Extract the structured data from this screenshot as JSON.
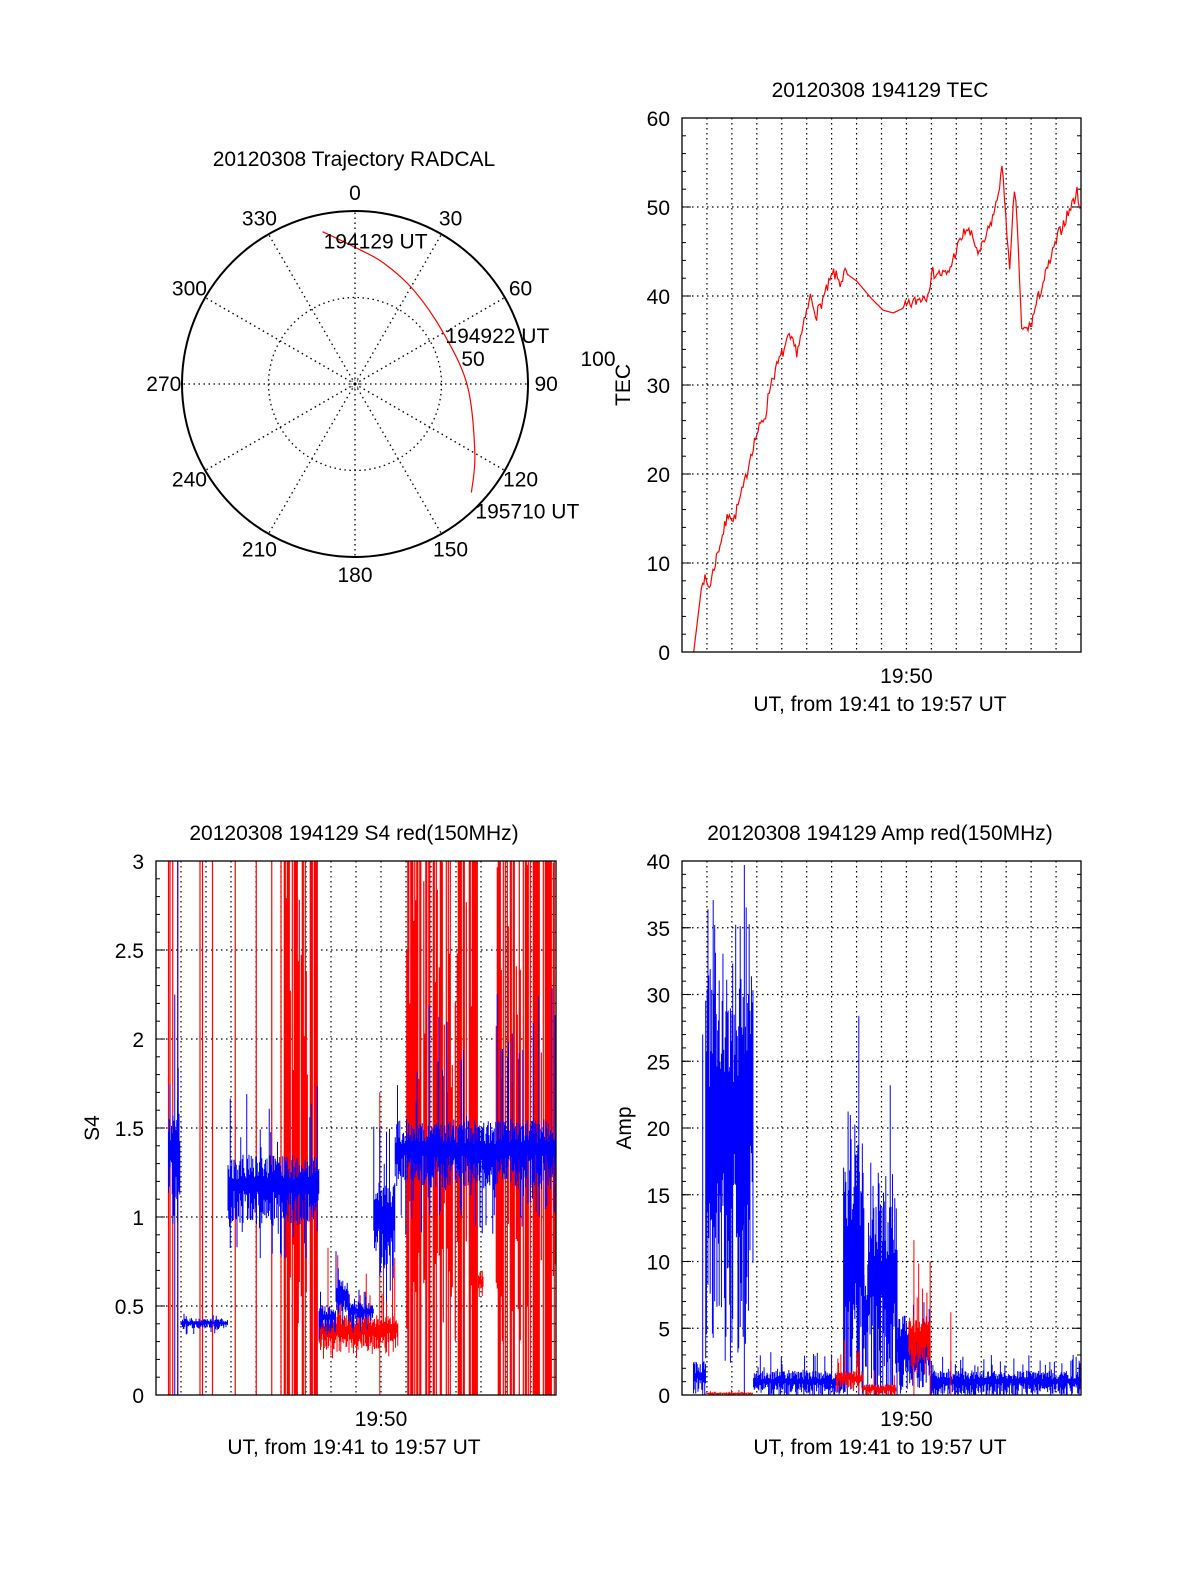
{
  "chart_data": [
    {
      "type": "polar",
      "title": "20120308 Trajectory RADCAL",
      "rlim": [
        0,
        100
      ],
      "angle_labels": [
        "0",
        "30",
        "60",
        "90",
        "120",
        "150",
        "180",
        "210",
        "240",
        "270",
        "300",
        "330"
      ],
      "radial_labels": [
        "50",
        "100"
      ],
      "trajectory": {
        "color": "#ff0000",
        "points_az_r": [
          [
            348,
            90
          ],
          [
            0,
            79
          ],
          [
            13,
            72
          ],
          [
            32,
            64
          ],
          [
            60,
            59
          ],
          [
            91,
            65
          ],
          [
            120,
            80
          ],
          [
            133,
            92
          ]
        ]
      },
      "annotations": [
        {
          "text": "194129 UT",
          "az": 348,
          "r": 90
        },
        {
          "text": "194922 UT",
          "az": 60,
          "r": 59
        },
        {
          "text": "195710 UT",
          "az": 133,
          "r": 92
        }
      ]
    },
    {
      "type": "line",
      "title": "20120308 194129 TEC",
      "xlabel": "UT, from 19:41 to 19:57 UT",
      "ylabel": "TEC",
      "x_units": "minutes after 19:00",
      "xlim": [
        41,
        57
      ],
      "xtick_labels": [
        {
          "value": 50,
          "label": "19:50"
        }
      ],
      "ylim": [
        0,
        60
      ],
      "yticks": [
        "0",
        "10",
        "20",
        "30",
        "40",
        "50",
        "60"
      ],
      "grid": true,
      "series": [
        {
          "name": "TEC",
          "color": "#ff0000",
          "x": [
            41.47,
            41.83,
            42.1,
            42.43,
            42.9,
            43.05,
            43.5,
            43.76,
            44.0,
            44.35,
            44.55,
            44.95,
            45.3,
            45.6,
            45.8,
            46.15,
            46.4,
            47.08,
            47.34,
            47.54,
            48.0,
            48.6,
            49.07,
            49.47,
            50.0,
            50.53,
            50.8,
            51.06,
            51.66,
            52.0,
            52.4,
            52.66,
            52.92,
            53.32,
            53.59,
            53.83,
            53.98,
            54.14,
            54.33,
            54.45,
            54.62,
            54.98,
            55.25,
            55.71,
            56.11,
            56.44,
            56.84,
            57.0
          ],
          "y": [
            0,
            8.4,
            7.3,
            11.2,
            15.9,
            14.6,
            18.8,
            22.3,
            24.5,
            26.7,
            30.2,
            33.1,
            35.3,
            33.8,
            35.7,
            39.9,
            37.9,
            42.6,
            41.5,
            42.6,
            41.7,
            39.7,
            38.4,
            38.1,
            38.8,
            39.7,
            40.1,
            42.6,
            42.4,
            45.2,
            47.6,
            46.5,
            44.6,
            47.6,
            50.1,
            54.3,
            49.6,
            42.4,
            52.1,
            47.9,
            36.0,
            36.6,
            39.5,
            43.5,
            47.0,
            49.0,
            51.6,
            49.9
          ]
        }
      ]
    },
    {
      "type": "line",
      "title": "20120308 194129 S4 red(150MHz)",
      "xlabel": "UT, from 19:41 to 19:57 UT",
      "ylabel": "S4",
      "x_units": "minutes after 19:00",
      "xlim": [
        41,
        57
      ],
      "xtick_labels": [
        {
          "value": 50,
          "label": "19:50"
        }
      ],
      "ylim": [
        0,
        3
      ],
      "yticks": [
        "0",
        "0.5",
        "1",
        "1.5",
        "2",
        "2.5",
        "3"
      ],
      "grid": true,
      "series": [
        {
          "name": "red (150MHz)",
          "color": "#ff0000",
          "full_range_spikes": [
            41.5,
            41.56,
            41.67,
            41.87,
            42.76,
            42.86,
            43.26,
            44.17,
            45.01,
            45.63,
            46.0
          ],
          "dense_spike_ranges": [
            [
              46.13,
              47.46
            ],
            [
              51.03,
              51.96
            ],
            [
              52.09,
              53.88
            ],
            [
              54.61,
              57.0
            ]
          ],
          "envelope_segments": [
            {
              "from": 47.52,
              "to": 50.7,
              "lo": 0.25,
              "hi": 0.45,
              "min": 0.2,
              "max": 0.85
            },
            {
              "from": 53.9,
              "to": 54.1,
              "lo": 0.55,
              "hi": 0.7,
              "min": 0.5,
              "max": 0.8
            }
          ],
          "spikes": [
            [
              49.95,
              1.7
            ]
          ]
        },
        {
          "name": "blue",
          "color": "#0000ff",
          "envelope_segments": [
            {
              "from": 41.5,
              "to": 41.96,
              "lo": 1.1,
              "hi": 1.6,
              "min": 0.9,
              "max": 1.85
            },
            {
              "from": 42.0,
              "to": 43.88,
              "lo": 0.37,
              "hi": 0.43,
              "min": 0.34,
              "max": 0.46
            },
            {
              "from": 43.88,
              "to": 47.52,
              "lo": 0.95,
              "hi": 1.35,
              "min": 0.75,
              "max": 1.75
            },
            {
              "from": 47.52,
              "to": 48.2,
              "lo": 0.35,
              "hi": 0.5,
              "min": 0.3,
              "max": 0.62
            },
            {
              "from": 48.2,
              "to": 48.7,
              "lo": 0.45,
              "hi": 0.65,
              "min": 0.35,
              "max": 0.84
            },
            {
              "from": 48.7,
              "to": 49.71,
              "lo": 0.4,
              "hi": 0.52,
              "min": 0.35,
              "max": 0.6
            },
            {
              "from": 49.71,
              "to": 50.57,
              "lo": 0.7,
              "hi": 1.2,
              "min": 0.5,
              "max": 1.55
            },
            {
              "from": 50.57,
              "to": 57.0,
              "lo": 1.15,
              "hi": 1.55,
              "min": 0.9,
              "max": 2.3
            }
          ],
          "spikes": [
            [
              41.87,
              3.0
            ],
            [
              41.75,
              2.25
            ]
          ]
        }
      ]
    },
    {
      "type": "line",
      "title": "20120308 194129 Amp red(150MHz)",
      "xlabel": "UT, from 19:41 to 19:57 UT",
      "ylabel": "Amp",
      "x_units": "minutes after 19:00",
      "xlim": [
        41,
        57
      ],
      "xtick_labels": [
        {
          "value": 50,
          "label": "19:50"
        }
      ],
      "ylim": [
        0,
        40
      ],
      "yticks": [
        "0",
        "5",
        "10",
        "15",
        "20",
        "25",
        "30",
        "35",
        "40"
      ],
      "grid": true,
      "series": [
        {
          "name": "blue",
          "color": "#0000ff",
          "envelope_segments": [
            {
              "from": 41.46,
              "to": 41.95,
              "lo": 0,
              "hi": 2.5,
              "min": 0,
              "max": 3.6
            },
            {
              "from": 41.95,
              "to": 43.87,
              "lo": 5,
              "hi": 32.5,
              "min": 2.3,
              "max": 38
            },
            {
              "from": 43.87,
              "to": 47.48,
              "lo": 0,
              "hi": 1.8,
              "min": 0,
              "max": 3.3
            },
            {
              "from": 47.48,
              "to": 48.3,
              "lo": 0.5,
              "hi": 19,
              "min": 0,
              "max": 22
            },
            {
              "from": 48.3,
              "to": 48.45,
              "lo": 0,
              "hi": 10,
              "min": 0,
              "max": 13
            },
            {
              "from": 48.45,
              "to": 49.64,
              "lo": 0,
              "hi": 15,
              "min": 0,
              "max": 17.5
            },
            {
              "from": 49.64,
              "to": 50.04,
              "lo": 0.5,
              "hi": 6,
              "min": 0,
              "max": 10.9
            },
            {
              "from": 50.04,
              "to": 50.97,
              "lo": 1,
              "hi": 5,
              "min": 0.5,
              "max": 7
            },
            {
              "from": 50.97,
              "to": 57.0,
              "lo": 0,
              "hi": 1.8,
              "min": 0,
              "max": 3
            }
          ],
          "spikes": [
            [
              41.83,
              27
            ],
            [
              43.5,
              39.7
            ],
            [
              48.09,
              28.4
            ],
            [
              49.35,
              23.2
            ]
          ]
        },
        {
          "name": "red (150MHz)",
          "color": "#ff0000",
          "envelope_segments": [
            {
              "from": 41.96,
              "to": 43.85,
              "lo": 0,
              "hi": 0.2,
              "min": 0,
              "max": 0.4
            },
            {
              "from": 47.19,
              "to": 48.25,
              "lo": 0.5,
              "hi": 1.8,
              "min": 0,
              "max": 4.2
            },
            {
              "from": 48.25,
              "to": 49.6,
              "lo": 0,
              "hi": 0.8,
              "min": 0,
              "max": 1.8
            },
            {
              "from": 50.1,
              "to": 50.97,
              "lo": 2,
              "hi": 6,
              "min": 1.5,
              "max": 11.6
            }
          ],
          "spikes": [
            [
              51.78,
              6.2
            ],
            [
              50.3,
              11.6
            ],
            [
              50.95,
              10
            ]
          ]
        }
      ]
    }
  ]
}
